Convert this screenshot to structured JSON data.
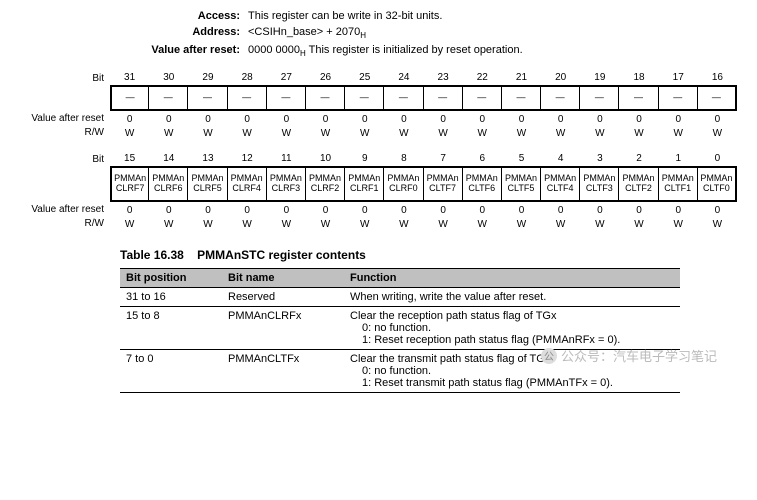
{
  "meta": {
    "access_label": "Access:",
    "access_value": "This register can be write in 32-bit units.",
    "address_label": "Address:",
    "address_prefix": "<CSIHn_base> + 2070",
    "address_sub": "H",
    "reset_label": "Value after reset:",
    "reset_prefix": "0000 0000",
    "reset_sub": "H",
    "reset_suffix": "  This register is initialized by reset operation."
  },
  "labels": {
    "bit": "Bit",
    "value_after_reset": "Value after reset",
    "rw": "R/W"
  },
  "upper": {
    "bits": [
      "31",
      "30",
      "29",
      "28",
      "27",
      "26",
      "25",
      "24",
      "23",
      "22",
      "21",
      "20",
      "19",
      "18",
      "17",
      "16"
    ],
    "names": [
      "—",
      "—",
      "—",
      "—",
      "—",
      "—",
      "—",
      "—",
      "—",
      "—",
      "—",
      "—",
      "—",
      "—",
      "—",
      "—"
    ],
    "reset": [
      "0",
      "0",
      "0",
      "0",
      "0",
      "0",
      "0",
      "0",
      "0",
      "0",
      "0",
      "0",
      "0",
      "0",
      "0",
      "0"
    ],
    "rw": [
      "W",
      "W",
      "W",
      "W",
      "W",
      "W",
      "W",
      "W",
      "W",
      "W",
      "W",
      "W",
      "W",
      "W",
      "W",
      "W"
    ]
  },
  "lower": {
    "bits": [
      "15",
      "14",
      "13",
      "12",
      "11",
      "10",
      "9",
      "8",
      "7",
      "6",
      "5",
      "4",
      "3",
      "2",
      "1",
      "0"
    ],
    "names": [
      "PMMAn CLRF7",
      "PMMAn CLRF6",
      "PMMAn CLRF5",
      "PMMAn CLRF4",
      "PMMAn CLRF3",
      "PMMAn CLRF2",
      "PMMAn CLRF1",
      "PMMAn CLRF0",
      "PMMAn CLTF7",
      "PMMAn CLTF6",
      "PMMAn CLTF5",
      "PMMAn CLTF4",
      "PMMAn CLTF3",
      "PMMAn CLTF2",
      "PMMAn CLTF1",
      "PMMAn CLTF0"
    ],
    "reset": [
      "0",
      "0",
      "0",
      "0",
      "0",
      "0",
      "0",
      "0",
      "0",
      "0",
      "0",
      "0",
      "0",
      "0",
      "0",
      "0"
    ],
    "rw": [
      "W",
      "W",
      "W",
      "W",
      "W",
      "W",
      "W",
      "W",
      "W",
      "W",
      "W",
      "W",
      "W",
      "W",
      "W",
      "W"
    ]
  },
  "table": {
    "caption_no": "Table 16.38",
    "caption_title": "PMMAnSTC register contents",
    "headers": [
      "Bit position",
      "Bit name",
      "Function"
    ],
    "rows": [
      {
        "pos": "31 to 16",
        "name": "Reserved",
        "func": [
          "When writing, write the value after reset."
        ]
      },
      {
        "pos": "15 to 8",
        "name": "PMMAnCLRFx",
        "func": [
          "Clear the reception path status flag of TGx",
          "0: no function.",
          "1: Reset reception path status flag (PMMAnRFx = 0)."
        ]
      },
      {
        "pos": "7 to 0",
        "name": "PMMAnCLTFx",
        "func": [
          "Clear the transmit path status flag of TGx",
          "0: no function.",
          "1: Reset transmit path status flag (PMMAnTFx = 0)."
        ]
      }
    ]
  },
  "watermark": {
    "icon": "公",
    "text": "公众号：汽车电子学习笔记"
  }
}
